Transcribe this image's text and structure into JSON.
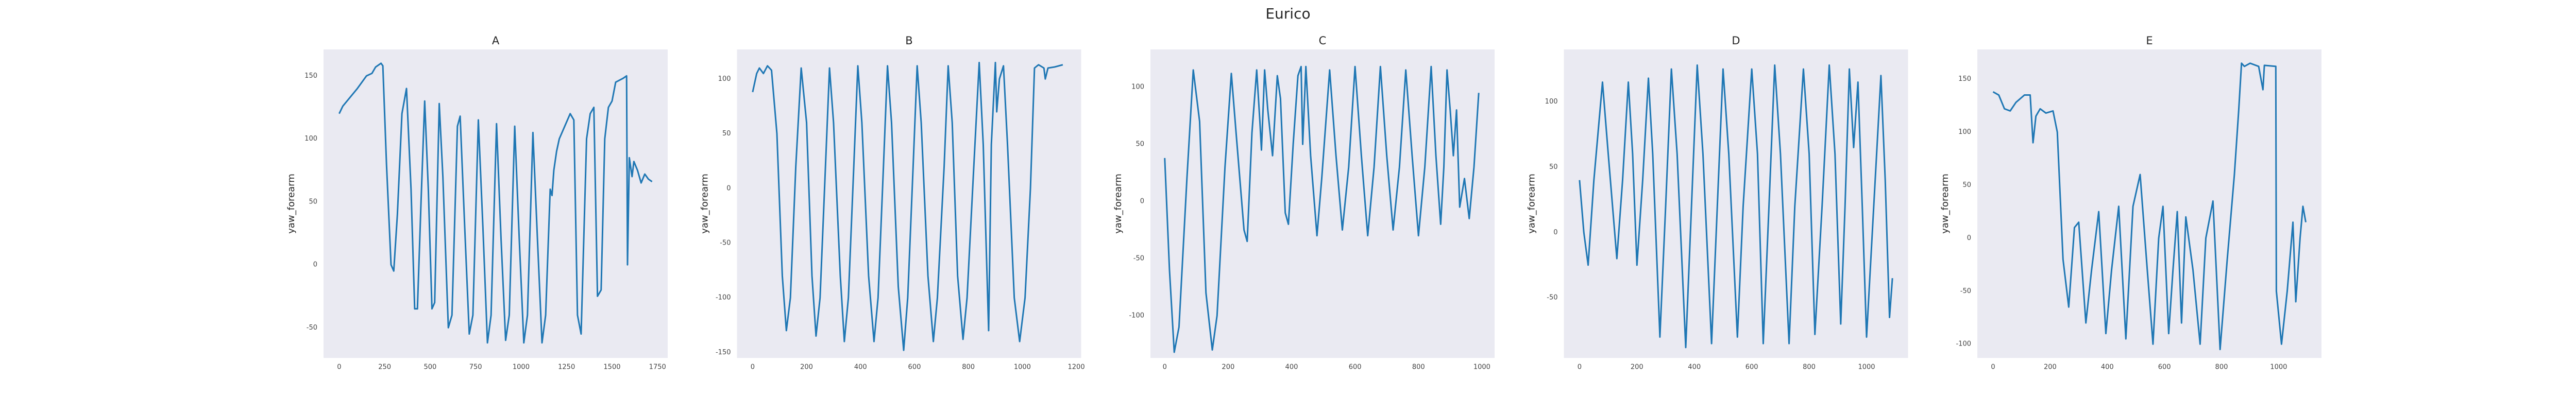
{
  "title": "Eurico",
  "chart_data": [
    {
      "type": "line",
      "title": "A",
      "y_label": "yaw_forearm",
      "color": "#1f77b4",
      "grid": false,
      "x": [
        0,
        20,
        60,
        100,
        150,
        180,
        200,
        230,
        240,
        260,
        285,
        300,
        320,
        345,
        370,
        395,
        415,
        430,
        450,
        470,
        490,
        510,
        525,
        550,
        570,
        600,
        620,
        650,
        665,
        690,
        715,
        735,
        765,
        790,
        815,
        835,
        865,
        890,
        915,
        935,
        965,
        990,
        1015,
        1035,
        1065,
        1090,
        1115,
        1135,
        1160,
        1170,
        1180,
        1195,
        1210,
        1240,
        1270,
        1290,
        1310,
        1330,
        1360,
        1380,
        1400,
        1420,
        1440,
        1460,
        1480,
        1500,
        1520,
        1560,
        1580,
        1585,
        1595,
        1610,
        1620,
        1640,
        1660,
        1680,
        1700,
        1720
      ],
      "values": [
        120,
        126,
        133,
        140,
        150,
        152,
        157,
        160,
        158,
        80,
        0,
        -5,
        40,
        120,
        140,
        60,
        -35,
        -35,
        50,
        130,
        60,
        -35,
        -30,
        128,
        70,
        -50,
        -40,
        110,
        118,
        30,
        -55,
        -40,
        115,
        30,
        -62,
        -40,
        112,
        20,
        -60,
        -40,
        110,
        20,
        -62,
        -40,
        105,
        20,
        -62,
        -40,
        60,
        55,
        75,
        90,
        100,
        110,
        120,
        115,
        -40,
        -55,
        100,
        120,
        125,
        -25,
        -20,
        100,
        125,
        130,
        145,
        148,
        150,
        0,
        85,
        70,
        82,
        75,
        65,
        72,
        68,
        66
      ],
      "xlim": [
        -86,
        1806
      ],
      "ylim": [
        -74,
        171
      ],
      "xticks": [
        0,
        250,
        500,
        750,
        1000,
        1250,
        1500,
        1750
      ],
      "yticks": [
        -50,
        0,
        50,
        100,
        150
      ]
    },
    {
      "type": "line",
      "title": "B",
      "y_label": "yaw_forearm",
      "color": "#1f77b4",
      "grid": false,
      "x": [
        0,
        15,
        25,
        40,
        55,
        70,
        90,
        110,
        125,
        140,
        160,
        180,
        200,
        220,
        235,
        250,
        270,
        285,
        300,
        325,
        340,
        355,
        375,
        390,
        405,
        430,
        450,
        465,
        485,
        500,
        515,
        540,
        560,
        575,
        595,
        610,
        625,
        650,
        670,
        685,
        710,
        725,
        740,
        760,
        780,
        795,
        820,
        840,
        855,
        875,
        885,
        900,
        905,
        915,
        930,
        945,
        970,
        990,
        1010,
        1030,
        1045,
        1060,
        1080,
        1085,
        1095,
        1120,
        1150
      ],
      "values": [
        88,
        105,
        110,
        105,
        112,
        108,
        50,
        -80,
        -130,
        -100,
        20,
        110,
        60,
        -80,
        -135,
        -100,
        20,
        110,
        60,
        -80,
        -140,
        -100,
        20,
        112,
        60,
        -80,
        -140,
        -100,
        20,
        112,
        60,
        -90,
        -148,
        -100,
        20,
        112,
        60,
        -80,
        -140,
        -100,
        20,
        112,
        60,
        -80,
        -138,
        -100,
        20,
        115,
        40,
        -130,
        40,
        115,
        70,
        100,
        112,
        40,
        -100,
        -140,
        -100,
        0,
        110,
        113,
        110,
        100,
        110,
        111,
        113
      ],
      "xlim": [
        -58,
        1218
      ],
      "ylim": [
        -155,
        127
      ],
      "xticks": [
        0,
        200,
        400,
        600,
        800,
        1000,
        1200
      ],
      "yticks": [
        -150,
        -100,
        -50,
        0,
        50,
        100
      ]
    },
    {
      "type": "line",
      "title": "C",
      "y_label": "yaw_forearm",
      "color": "#1f77b4",
      "grid": false,
      "x": [
        0,
        15,
        30,
        45,
        70,
        90,
        110,
        130,
        150,
        165,
        190,
        210,
        225,
        250,
        260,
        275,
        290,
        300,
        305,
        315,
        325,
        340,
        355,
        365,
        380,
        390,
        405,
        420,
        430,
        435,
        445,
        460,
        480,
        495,
        520,
        540,
        560,
        580,
        600,
        620,
        640,
        660,
        680,
        700,
        720,
        740,
        760,
        780,
        800,
        820,
        840,
        855,
        870,
        880,
        890,
        900,
        910,
        920,
        930,
        945,
        960,
        975,
        990
      ],
      "values": [
        38,
        -60,
        -132,
        -110,
        20,
        115,
        70,
        -80,
        -130,
        -100,
        30,
        112,
        60,
        -25,
        -35,
        60,
        115,
        70,
        45,
        115,
        80,
        40,
        110,
        90,
        -10,
        -20,
        50,
        110,
        118,
        50,
        118,
        40,
        -30,
        20,
        115,
        40,
        -25,
        30,
        118,
        40,
        -30,
        30,
        118,
        40,
        -25,
        30,
        115,
        40,
        -30,
        30,
        118,
        40,
        -20,
        30,
        115,
        80,
        40,
        80,
        -5,
        20,
        -15,
        30,
        95
      ],
      "xlim": [
        -45,
        1040
      ],
      "ylim": [
        -137,
        133
      ],
      "xticks": [
        0,
        200,
        400,
        600,
        800,
        1000
      ],
      "yticks": [
        -100,
        -50,
        0,
        50,
        100
      ]
    },
    {
      "type": "line",
      "title": "D",
      "y_label": "yaw_forearm",
      "color": "#1f77b4",
      "grid": false,
      "x": [
        0,
        15,
        30,
        50,
        80,
        100,
        130,
        150,
        170,
        185,
        200,
        220,
        240,
        255,
        280,
        300,
        320,
        340,
        370,
        390,
        410,
        430,
        460,
        480,
        500,
        520,
        550,
        570,
        600,
        620,
        640,
        660,
        680,
        700,
        730,
        750,
        780,
        800,
        820,
        845,
        870,
        890,
        910,
        925,
        940,
        955,
        970,
        985,
        1000,
        1025,
        1050,
        1065,
        1080,
        1090
      ],
      "values": [
        40,
        0,
        -25,
        40,
        115,
        60,
        -20,
        40,
        115,
        60,
        -25,
        40,
        118,
        60,
        -80,
        20,
        125,
        60,
        -88,
        20,
        128,
        60,
        -85,
        20,
        125,
        60,
        -80,
        20,
        125,
        60,
        -85,
        20,
        128,
        60,
        -85,
        20,
        125,
        60,
        -78,
        20,
        128,
        60,
        -70,
        20,
        125,
        65,
        115,
        20,
        -80,
        20,
        120,
        40,
        -65,
        -35
      ],
      "xlim": [
        -54.5,
        1144.5
      ],
      "ylim": [
        -96,
        140
      ],
      "xticks": [
        0,
        200,
        400,
        600,
        800,
        1000
      ],
      "yticks": [
        -50,
        0,
        50,
        100
      ]
    },
    {
      "type": "line",
      "title": "E",
      "y_label": "yaw_forearm",
      "color": "#1f77b4",
      "grid": false,
      "x": [
        0,
        20,
        40,
        60,
        80,
        110,
        130,
        140,
        150,
        165,
        185,
        210,
        225,
        245,
        265,
        285,
        300,
        325,
        345,
        370,
        395,
        415,
        440,
        465,
        490,
        515,
        540,
        560,
        580,
        595,
        615,
        630,
        645,
        660,
        675,
        700,
        725,
        745,
        770,
        795,
        820,
        845,
        860,
        870,
        880,
        900,
        930,
        945,
        950,
        990,
        992,
        1010,
        1030,
        1050,
        1060,
        1075,
        1085,
        1095
      ],
      "values": [
        138,
        135,
        122,
        120,
        128,
        135,
        135,
        90,
        115,
        122,
        118,
        120,
        100,
        -20,
        -65,
        10,
        15,
        -80,
        -30,
        25,
        -90,
        -30,
        30,
        -95,
        30,
        60,
        -30,
        -100,
        0,
        30,
        -90,
        -30,
        25,
        -80,
        20,
        -30,
        -100,
        0,
        35,
        -105,
        -20,
        60,
        120,
        165,
        162,
        165,
        162,
        140,
        163,
        162,
        -50,
        -100,
        -50,
        15,
        -60,
        0,
        30,
        15
      ],
      "xlim": [
        -55,
        1150
      ],
      "ylim": [
        -113,
        178
      ],
      "xticks": [
        0,
        200,
        400,
        600,
        800,
        1000
      ],
      "yticks": [
        -100,
        -50,
        0,
        50,
        100,
        150
      ]
    }
  ]
}
